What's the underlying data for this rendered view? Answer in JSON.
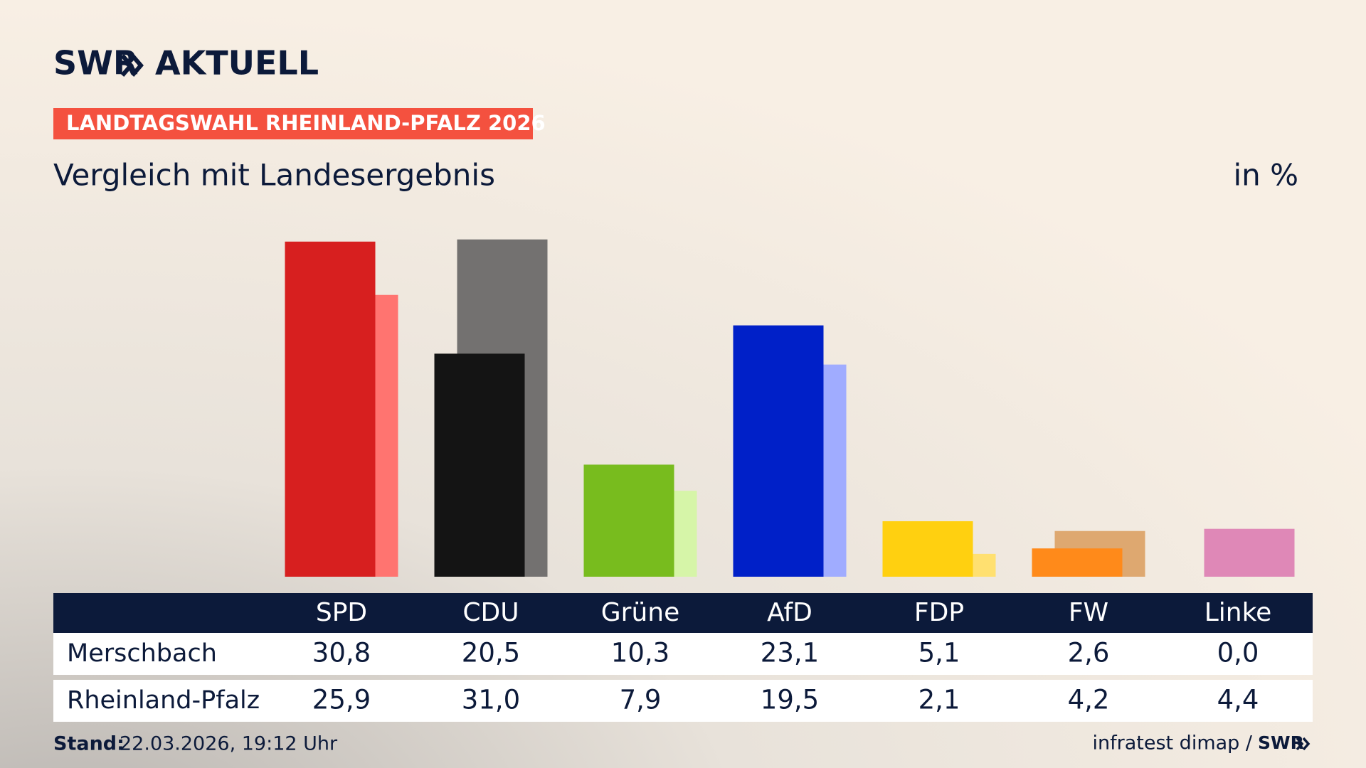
{
  "header": {
    "logo": "SWR",
    "logo_word": "AKTUELL",
    "tag": "LANDTAGSWAHL RHEINLAND-PFALZ 2026"
  },
  "chart_data": {
    "type": "bar",
    "title": "Vergleich mit Landesergebnis",
    "unit": "in %",
    "categories": [
      "SPD",
      "CDU",
      "Grüne",
      "AfD",
      "FDP",
      "FW",
      "Linke"
    ],
    "series": [
      {
        "name": "Merschbach",
        "colors": [
          "#d71f1f",
          "#141414",
          "#78bc1e",
          "#0020c8",
          "#ffd010",
          "#ff8a1a",
          "#be3075"
        ],
        "values": [
          30.8,
          20.5,
          10.3,
          23.1,
          5.1,
          2.6,
          0.0
        ],
        "value_labels": [
          "30,8",
          "20,5",
          "10,3",
          "23,1",
          "5,1",
          "2,6",
          "0,0"
        ]
      },
      {
        "name": "Rheinland-Pfalz",
        "colors": [
          "#ff7470",
          "#737170",
          "#d6f5a8",
          "#a0acff",
          "#ffe070",
          "#dea870",
          "#df88b7"
        ],
        "values": [
          25.9,
          31.0,
          7.9,
          19.5,
          2.1,
          4.2,
          4.4
        ],
        "value_labels": [
          "25,9",
          "31,0",
          "7,9",
          "19,5",
          "2,1",
          "4,2",
          "4,4"
        ]
      }
    ]
  },
  "footer": {
    "stand_label": "Stand:",
    "stand": "22.03.2026, 19:12 Uhr",
    "source": "infratest dimap /",
    "logo": "SWR"
  }
}
